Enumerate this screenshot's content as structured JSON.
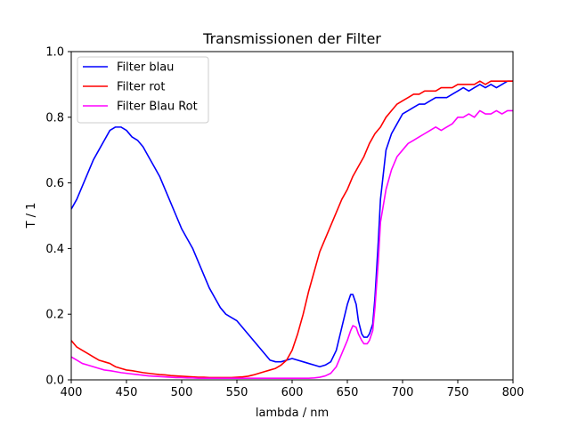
{
  "chart_data": {
    "type": "line",
    "title": "Transmissionen der Filter",
    "xlabel": "lambda / nm",
    "ylabel": "T / 1",
    "xlim": [
      400,
      800
    ],
    "ylim": [
      0.0,
      1.0
    ],
    "x_ticks": [
      400,
      450,
      500,
      550,
      600,
      650,
      700,
      750,
      800
    ],
    "y_ticks": [
      0.0,
      0.2,
      0.4,
      0.6,
      0.8,
      1.0
    ],
    "x_tick_labels": [
      "400",
      "450",
      "500",
      "550",
      "600",
      "650",
      "700",
      "750",
      "800"
    ],
    "y_tick_labels": [
      "0.0",
      "0.2",
      "0.4",
      "0.6",
      "0.8",
      "1.0"
    ],
    "grid": false,
    "legend_position": "top-left",
    "series": [
      {
        "name": "Filter blau",
        "color": "#0000ff",
        "x": [
          400,
          405,
          410,
          415,
          420,
          425,
          430,
          435,
          440,
          445,
          450,
          455,
          460,
          465,
          470,
          475,
          480,
          485,
          490,
          495,
          500,
          505,
          510,
          515,
          520,
          525,
          530,
          535,
          540,
          545,
          550,
          555,
          560,
          565,
          570,
          575,
          580,
          585,
          590,
          595,
          600,
          605,
          610,
          615,
          620,
          625,
          630,
          635,
          640,
          645,
          650,
          653,
          655,
          658,
          660,
          663,
          665,
          668,
          670,
          673,
          675,
          678,
          680,
          685,
          690,
          695,
          700,
          705,
          710,
          715,
          720,
          725,
          730,
          735,
          740,
          745,
          750,
          755,
          760,
          765,
          770,
          775,
          780,
          785,
          790,
          795,
          800
        ],
        "y": [
          0.52,
          0.55,
          0.59,
          0.63,
          0.67,
          0.7,
          0.73,
          0.76,
          0.77,
          0.77,
          0.76,
          0.74,
          0.73,
          0.71,
          0.68,
          0.65,
          0.62,
          0.58,
          0.54,
          0.5,
          0.46,
          0.43,
          0.4,
          0.36,
          0.32,
          0.28,
          0.25,
          0.22,
          0.2,
          0.19,
          0.18,
          0.16,
          0.14,
          0.12,
          0.1,
          0.08,
          0.06,
          0.055,
          0.055,
          0.06,
          0.065,
          0.06,
          0.055,
          0.05,
          0.045,
          0.04,
          0.045,
          0.055,
          0.09,
          0.16,
          0.23,
          0.26,
          0.26,
          0.23,
          0.18,
          0.14,
          0.13,
          0.13,
          0.14,
          0.17,
          0.25,
          0.42,
          0.55,
          0.7,
          0.75,
          0.78,
          0.81,
          0.82,
          0.83,
          0.84,
          0.84,
          0.85,
          0.86,
          0.86,
          0.86,
          0.87,
          0.88,
          0.89,
          0.88,
          0.89,
          0.9,
          0.89,
          0.9,
          0.89,
          0.9,
          0.91,
          0.91
        ]
      },
      {
        "name": "Filter rot",
        "color": "#ff0000",
        "x": [
          400,
          405,
          410,
          415,
          420,
          425,
          430,
          435,
          440,
          445,
          450,
          455,
          460,
          465,
          470,
          475,
          480,
          485,
          490,
          495,
          500,
          505,
          510,
          515,
          520,
          525,
          530,
          535,
          540,
          545,
          550,
          555,
          560,
          565,
          570,
          575,
          580,
          585,
          590,
          595,
          600,
          605,
          610,
          615,
          620,
          625,
          630,
          635,
          640,
          645,
          650,
          655,
          660,
          665,
          670,
          675,
          680,
          685,
          690,
          695,
          700,
          705,
          710,
          715,
          720,
          725,
          730,
          735,
          740,
          745,
          750,
          755,
          760,
          765,
          770,
          775,
          780,
          785,
          790,
          795,
          800
        ],
        "y": [
          0.12,
          0.1,
          0.09,
          0.08,
          0.07,
          0.06,
          0.055,
          0.05,
          0.04,
          0.035,
          0.03,
          0.028,
          0.025,
          0.022,
          0.02,
          0.018,
          0.016,
          0.015,
          0.013,
          0.012,
          0.011,
          0.01,
          0.009,
          0.008,
          0.008,
          0.007,
          0.007,
          0.007,
          0.007,
          0.007,
          0.008,
          0.009,
          0.011,
          0.015,
          0.02,
          0.025,
          0.03,
          0.035,
          0.045,
          0.06,
          0.09,
          0.14,
          0.2,
          0.27,
          0.33,
          0.39,
          0.43,
          0.47,
          0.51,
          0.55,
          0.58,
          0.62,
          0.65,
          0.68,
          0.72,
          0.75,
          0.77,
          0.8,
          0.82,
          0.84,
          0.85,
          0.86,
          0.87,
          0.87,
          0.88,
          0.88,
          0.88,
          0.89,
          0.89,
          0.89,
          0.9,
          0.9,
          0.9,
          0.9,
          0.91,
          0.9,
          0.91,
          0.91,
          0.91,
          0.91,
          0.91
        ]
      },
      {
        "name": "Filter Blau Rot",
        "color": "#ff00ff",
        "x": [
          400,
          405,
          410,
          415,
          420,
          425,
          430,
          435,
          440,
          445,
          450,
          455,
          460,
          465,
          470,
          475,
          480,
          485,
          490,
          495,
          500,
          505,
          510,
          515,
          520,
          525,
          530,
          535,
          540,
          545,
          550,
          555,
          560,
          565,
          570,
          575,
          580,
          585,
          590,
          595,
          600,
          605,
          610,
          615,
          620,
          625,
          630,
          635,
          640,
          645,
          650,
          653,
          655,
          658,
          660,
          663,
          665,
          668,
          670,
          673,
          675,
          678,
          680,
          685,
          690,
          695,
          700,
          705,
          710,
          715,
          720,
          725,
          730,
          735,
          740,
          745,
          750,
          755,
          760,
          765,
          770,
          775,
          780,
          785,
          790,
          795,
          800
        ],
        "y": [
          0.07,
          0.06,
          0.05,
          0.045,
          0.04,
          0.035,
          0.03,
          0.028,
          0.025,
          0.022,
          0.02,
          0.018,
          0.016,
          0.014,
          0.012,
          0.011,
          0.01,
          0.009,
          0.008,
          0.007,
          0.007,
          0.006,
          0.006,
          0.005,
          0.005,
          0.005,
          0.005,
          0.005,
          0.005,
          0.005,
          0.005,
          0.005,
          0.005,
          0.005,
          0.005,
          0.005,
          0.005,
          0.005,
          0.005,
          0.005,
          0.005,
          0.005,
          0.005,
          0.005,
          0.006,
          0.008,
          0.012,
          0.02,
          0.04,
          0.08,
          0.12,
          0.15,
          0.165,
          0.16,
          0.14,
          0.12,
          0.11,
          0.11,
          0.12,
          0.15,
          0.22,
          0.36,
          0.48,
          0.58,
          0.64,
          0.68,
          0.7,
          0.72,
          0.73,
          0.74,
          0.75,
          0.76,
          0.77,
          0.76,
          0.77,
          0.78,
          0.8,
          0.8,
          0.81,
          0.8,
          0.82,
          0.81,
          0.81,
          0.82,
          0.81,
          0.82,
          0.82
        ]
      }
    ]
  }
}
